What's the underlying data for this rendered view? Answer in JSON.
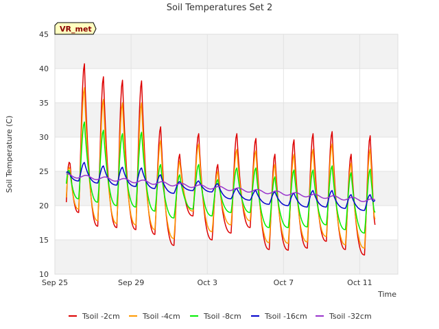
{
  "chart_data": {
    "type": "line",
    "title": "Soil Temperatures Set 2",
    "xlabel": "Time",
    "ylabel": "Soil Temperature (C)",
    "ylim": [
      10,
      45
    ],
    "yticks": [
      10,
      15,
      20,
      25,
      30,
      35,
      40,
      45
    ],
    "xlim": [
      "2023-09-25",
      "2023-10-13"
    ],
    "xticks": [
      {
        "date": "2023-09-25",
        "label": "Sep 25"
      },
      {
        "date": "2023-09-29",
        "label": "Sep 29"
      },
      {
        "date": "2023-10-03",
        "label": "Oct 3"
      },
      {
        "date": "2023-10-07",
        "label": "Oct 7"
      },
      {
        "date": "2023-10-11",
        "label": "Oct 11"
      }
    ],
    "grid": true,
    "background_bands": true,
    "legend_position": "bottom",
    "badge": "VR_met",
    "series": [
      {
        "name": "Tsoil -2cm",
        "color": "#dd0000",
        "daily_min": [
          18,
          19,
          17,
          16.8,
          16.5,
          15.8,
          14.2,
          18.5,
          15,
          16,
          16.8,
          13.6,
          13.5,
          13.8,
          14.8,
          13.6,
          12.8
        ],
        "daily_max": [
          40.5,
          40.7,
          38.8,
          38.3,
          38.2,
          31.5,
          27.5,
          30.5,
          26,
          30.5,
          29.8,
          27.5,
          29.6,
          30.5,
          30.8,
          27.5,
          30.2
        ],
        "start": 20.5,
        "end": 17.2
      },
      {
        "name": "Tsoil -4cm",
        "color": "#ff9900",
        "daily_min": [
          19,
          19.5,
          17.8,
          17.4,
          17.2,
          16.5,
          15.2,
          19.2,
          16.2,
          17.2,
          17.8,
          14.6,
          14.5,
          14.7,
          15.5,
          14.3,
          13.8
        ],
        "daily_max": [
          37,
          37.2,
          35.5,
          35,
          35,
          29.5,
          26.5,
          29,
          25,
          28.2,
          28,
          26,
          27.5,
          28.2,
          29,
          26.2,
          28.2
        ],
        "start": 21.2,
        "end": 18
      },
      {
        "name": "Tsoil -8cm",
        "color": "#00ee00",
        "daily_min": [
          21.2,
          21,
          20.5,
          20,
          19.8,
          19.2,
          18.2,
          19.5,
          18.5,
          19,
          19,
          16.8,
          16.8,
          16.9,
          17.2,
          16.5,
          16
        ],
        "daily_max": [
          32,
          32.2,
          31,
          30.5,
          30.7,
          26,
          24.5,
          26,
          23.8,
          25.5,
          25.5,
          24.2,
          25.2,
          25.2,
          25.8,
          24.8,
          25.3
        ],
        "start": 23.2,
        "end": 19
      },
      {
        "name": "Tsoil -16cm",
        "color": "#0000cc",
        "daily_min": [
          23.5,
          23.6,
          23.3,
          23,
          22.8,
          22.5,
          21.8,
          22.2,
          22,
          21,
          20.8,
          20.2,
          20,
          19.8,
          19.8,
          19.6,
          19.3
        ],
        "daily_max": [
          26.2,
          26.3,
          25.8,
          25.6,
          25.5,
          24.5,
          23.5,
          23.6,
          23.2,
          22.5,
          22.2,
          22,
          21.8,
          22.2,
          22.2,
          21.6,
          21.6
        ],
        "start": 24.8,
        "end": 20.8
      },
      {
        "name": "Tsoil -32cm",
        "color": "#9933cc",
        "start": 24.4,
        "end": 20.7,
        "amplitude": 0.25
      }
    ]
  }
}
